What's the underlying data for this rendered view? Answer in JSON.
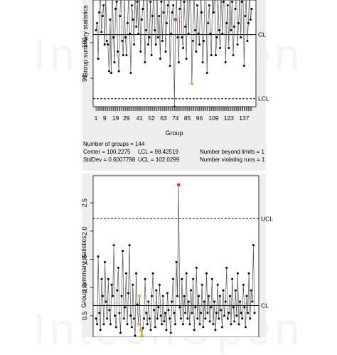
{
  "watermark": "IntechOpen",
  "chart_data": [
    {
      "type": "line",
      "title": "",
      "xlabel": "Group",
      "ylabel": "Group summary statistics",
      "x_tick_labels": [
        "1",
        "9",
        "19",
        "29",
        "41",
        "52",
        "63",
        "74",
        "85",
        "96",
        "109",
        "123",
        "137"
      ],
      "y_ticks": [
        99,
        100
      ],
      "center_line": 100.2275,
      "lcl_line": 98.42519,
      "line_labels": {
        "cl": "CL",
        "lcl": "LCL"
      },
      "n_groups": 144,
      "y_values": [
        100.35,
        100.55,
        99.55,
        100.85,
        101.55,
        100.3,
        100.75,
        101.05,
        99.95,
        101.25,
        100.05,
        99.95,
        99.2,
        100.65,
        99.15,
        101.75,
        100.15,
        99.45,
        100.95,
        101.15,
        99.75,
        99.2,
        100.75,
        101.55,
        100.05,
        99.65,
        101.35,
        100.15,
        99.65,
        100.55,
        101.35,
        100.25,
        99.15,
        101.05,
        100.65,
        99.95,
        101.55,
        100.45,
        101.15,
        100.25,
        101.45,
        99.75,
        100.65,
        100.95,
        101.45,
        99.45,
        100.35,
        101.35,
        99.95,
        100.15,
        101.15,
        99.65,
        100.75,
        101.45,
        100.35,
        99.95,
        101.55,
        100.15,
        100.75,
        99.55,
        101.15,
        100.05,
        100.85,
        101.45,
        99.75,
        100.55,
        101.05,
        101.65,
        99.35,
        100.25,
        100.85,
        101.05,
        98.2,
        100.65,
        101.25,
        100.15,
        99.45,
        100.95,
        101.35,
        100.15,
        99.85,
        101.15,
        100.45,
        99.55,
        101.75,
        100.25,
        101.35,
        101.85,
        98.85,
        100.05,
        101.45,
        100.35,
        99.75,
        101.05,
        100.25,
        99.95,
        101.55,
        100.85,
        99.45,
        100.05,
        101.35,
        101.55,
        99.15,
        100.55,
        101.05,
        100.25,
        99.65,
        101.35,
        100.85,
        101.45,
        99.65,
        100.15,
        101.25,
        100.35,
        99.85,
        101.55,
        100.25,
        101.15,
        101.65,
        99.45,
        100.55,
        101.05,
        99.85,
        101.35,
        100.35,
        101.15,
        99.65,
        100.45,
        100.95,
        101.65,
        99.95,
        100.55,
        101.35,
        100.15,
        101.15,
        101.55,
        99.35,
        100.75,
        101.25,
        100.05,
        100.55,
        101.45,
        100.65,
        100.95
      ],
      "out_of_control_points": [
        73
      ],
      "run_violation_points": [
        88
      ],
      "colors": {
        "normal": "#000000",
        "out_of_control": "#e8323a",
        "run_violation": "#f5a030"
      },
      "stats": [
        "Number of groups = 144",
        "Center = 100.2275",
        "StdDev = 0.6007798",
        "LCL = 98.42519",
        "UCL = 102.0299",
        "Number beyond limits = 1",
        "Number violating runs = 1"
      ]
    },
    {
      "type": "line",
      "title": "",
      "xlabel": "",
      "ylabel": "Group summary statistics",
      "y_ticks": [
        0.5,
        1.0,
        1.5,
        2.0,
        2.5
      ],
      "y_tick_labels": [
        "0.5",
        "1.0",
        "1.5",
        "2.0",
        "2.5"
      ],
      "center_line": 0.68,
      "ucl_line": 2.22,
      "line_labels": {
        "cl": "CL",
        "ucl": "UCL"
      },
      "y_values": [
        0.45,
        0.35,
        1.55,
        0.55,
        0.25,
        1.15,
        0.85,
        0.35,
        1.45,
        0.75,
        0.45,
        1.15,
        0.6,
        0.35,
        1.05,
        0.85,
        1.75,
        0.5,
        0.3,
        0.95,
        1.35,
        0.55,
        0.2,
        0.85,
        1.65,
        0.45,
        0.65,
        1.25,
        0.35,
        0.9,
        1.75,
        0.5,
        0.3,
        1.05,
        0.45,
        0.15,
        1.25,
        0.7,
        0.35,
        0.85,
        0.25,
        0.15,
        0.28,
        0.45,
        1.15,
        0.55,
        0.35,
        0.75,
        0.45,
        0.25,
        0.85,
        1.25,
        0.6,
        0.3,
        0.95,
        0.45,
        0.65,
        1.05,
        0.5,
        0.35,
        0.85,
        0.4,
        0.55,
        0.25,
        0.9,
        0.6,
        0.45,
        0.2,
        0.75,
        1.15,
        0.55,
        0.35,
        1.45,
        0.85,
        2.82,
        0.65,
        0.45,
        1.15,
        0.35,
        0.85,
        0.55,
        1.25,
        0.45,
        0.75,
        0.35,
        0.95,
        0.55,
        1.15,
        0.25,
        0.65,
        1.35,
        0.45,
        0.85,
        0.35,
        0.55,
        1.05,
        0.3,
        0.75,
        0.45,
        1.25,
        0.55,
        0.85,
        0.4,
        0.65,
        1.15,
        0.35,
        0.75,
        0.25,
        0.55,
        1.05,
        0.45,
        0.85,
        0.6,
        0.3,
        0.95,
        0.5,
        0.75,
        1.35,
        0.45,
        0.55,
        0.85,
        0.35,
        1.15,
        0.65,
        0.4,
        0.95,
        0.5,
        1.25,
        0.35,
        0.75,
        0.55,
        0.45,
        1.05,
        0.65,
        0.3,
        0.85,
        0.55,
        1.25,
        0.45,
        0.95,
        0.75,
        1.75,
        0.55
      ],
      "out_of_control_points": [
        74
      ],
      "run_violation_points": [
        38,
        39,
        40,
        41
      ],
      "colors": {
        "normal": "#000000",
        "out_of_control": "#e8323a",
        "run_violation": "#f5a030"
      }
    }
  ]
}
